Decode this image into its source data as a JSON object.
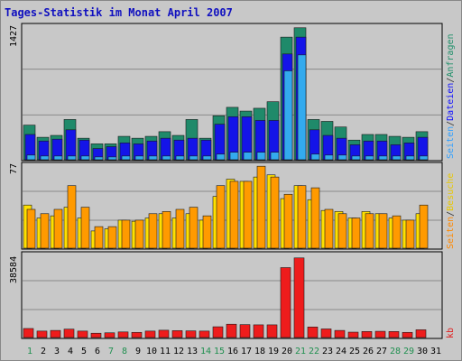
{
  "chart_data": [
    {
      "type": "bar",
      "panel": "top",
      "title": "Tages-Statistik im Monat April 2007",
      "ymax_label": "1427",
      "ylim": [
        0,
        1427
      ],
      "grid": true,
      "categories": [
        "1",
        "2",
        "3",
        "4",
        "5",
        "6",
        "7",
        "8",
        "9",
        "10",
        "11",
        "12",
        "13",
        "14",
        "15",
        "16",
        "17",
        "18",
        "19",
        "20",
        "21",
        "22",
        "23",
        "24",
        "25",
        "26",
        "27",
        "28",
        "29",
        "30",
        "31"
      ],
      "legend": [
        {
          "name": "Seiten",
          "color": "#30a0ff"
        },
        {
          "name": "/",
          "color": "#303030"
        },
        {
          "name": "Dateien",
          "color": "#1010ff"
        },
        {
          "name": "/",
          "color": "#303030"
        },
        {
          "name": "Anfragen",
          "color": "#20906a"
        }
      ],
      "series": [
        {
          "color": "#1f8a6a",
          "values": [
            370,
            240,
            260,
            430,
            230,
            170,
            170,
            250,
            230,
            250,
            300,
            260,
            430,
            230,
            470,
            560,
            520,
            550,
            620,
            1310,
            1410,
            430,
            410,
            350,
            210,
            270,
            270,
            250,
            240,
            300,
            0
          ]
        },
        {
          "color": "#1414e8",
          "values": [
            270,
            200,
            220,
            320,
            210,
            120,
            140,
            180,
            170,
            200,
            230,
            210,
            230,
            210,
            380,
            460,
            460,
            420,
            420,
            1130,
            1310,
            320,
            260,
            230,
            160,
            200,
            200,
            160,
            180,
            240,
            0
          ]
        },
        {
          "color": "#33aaee",
          "values": [
            50,
            40,
            40,
            40,
            40,
            30,
            30,
            40,
            40,
            40,
            40,
            40,
            40,
            40,
            60,
            80,
            80,
            80,
            80,
            950,
            1120,
            60,
            50,
            50,
            40,
            40,
            40,
            40,
            40,
            40,
            0
          ]
        }
      ]
    },
    {
      "type": "bar",
      "panel": "middle",
      "ymax_label": "77",
      "ylim": [
        0,
        77
      ],
      "grid": true,
      "legend": [
        {
          "name": "Seiten",
          "color": "#ff8800"
        },
        {
          "name": "/",
          "color": "#303030"
        },
        {
          "name": "Besuche",
          "color": "#e8c800"
        }
      ],
      "series": [
        {
          "color": "#ffe000",
          "values": [
            40,
            28,
            30,
            38,
            28,
            16,
            18,
            26,
            25,
            28,
            32,
            28,
            32,
            26,
            48,
            64,
            62,
            66,
            68,
            46,
            58,
            45,
            35,
            34,
            28,
            34,
            32,
            28,
            26,
            32,
            0
          ]
        },
        {
          "color": "#ff9a00",
          "values": [
            36,
            32,
            36,
            58,
            38,
            20,
            20,
            26,
            26,
            32,
            34,
            36,
            38,
            30,
            58,
            62,
            62,
            76,
            66,
            50,
            58,
            56,
            36,
            32,
            28,
            32,
            32,
            30,
            26,
            40,
            0
          ]
        }
      ]
    },
    {
      "type": "bar",
      "panel": "bottom",
      "ymax_label": "38584",
      "ylim": [
        0,
        38584
      ],
      "grid": true,
      "legend": [
        {
          "name": "kb",
          "color": "#e02020"
        }
      ],
      "series": [
        {
          "color": "#ee1c1c",
          "values": [
            4200,
            3000,
            3300,
            3900,
            3000,
            2000,
            2200,
            2600,
            2400,
            3000,
            3400,
            3200,
            3100,
            3000,
            5000,
            6200,
            6000,
            5900,
            5900,
            32500,
            37000,
            4900,
            4000,
            3300,
            2500,
            2800,
            2900,
            2800,
            2400,
            3600,
            0
          ]
        }
      ]
    }
  ],
  "x_label_colors": [
    "#209050",
    "#000000",
    "#000000",
    "#000000",
    "#000000",
    "#000000",
    "#209050",
    "#209050",
    "#000000",
    "#000000",
    "#000000",
    "#000000",
    "#000000",
    "#209050",
    "#209050",
    "#000000",
    "#000000",
    "#000000",
    "#000000",
    "#000000",
    "#209050",
    "#209050",
    "#000000",
    "#000000",
    "#000000",
    "#000000",
    "#000000",
    "#209050",
    "#209050",
    "#000000",
    "#000000"
  ]
}
